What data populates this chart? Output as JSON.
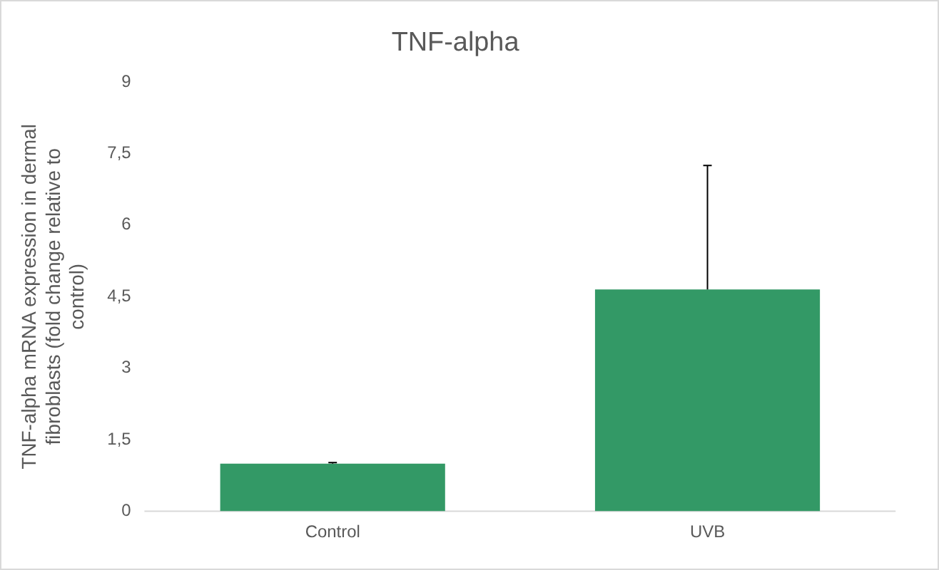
{
  "chart_data": {
    "type": "bar",
    "title": "TNF-alpha",
    "ylabel": "TNF-alpha mRNA expression in dermal fibroblasts (fold change relative to control)",
    "categories": [
      "Control",
      "UVB"
    ],
    "series": [
      {
        "color": "#339966",
        "values": [
          1.0,
          4.65
        ],
        "errors": [
          [
            1.0,
            1.02
          ],
          [
            4.65,
            7.25
          ]
        ]
      }
    ],
    "ylim": [
      0,
      9
    ],
    "yticks": [
      0,
      {
        "value": 1.5,
        "label": "1,5"
      },
      3,
      {
        "value": 4.5,
        "label": "4,5"
      },
      6,
      {
        "value": 7.5,
        "label": "7,5"
      },
      9
    ],
    "grid": false,
    "legend": false
  }
}
